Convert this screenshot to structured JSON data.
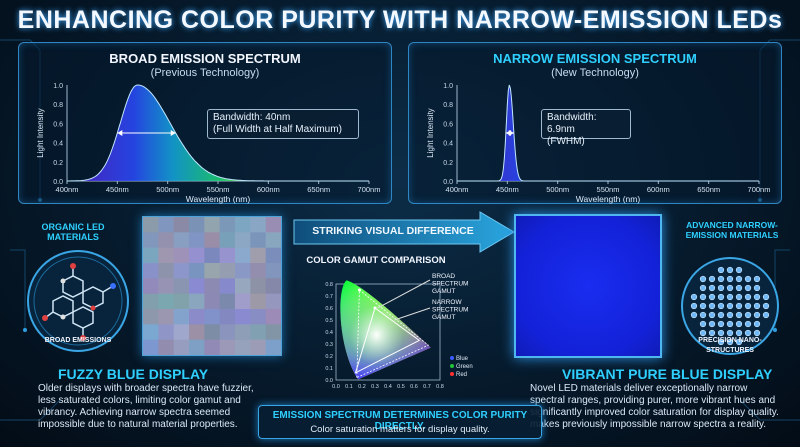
{
  "title": "ENHANCING COLOR PURITY WITH NARROW-EMISSION LEDs",
  "left_chart": {
    "title": "BROAD EMISSION SPECTRUM",
    "subtitle": "(Previous Technology)",
    "annotation_line1": "Bandwidth: 40nm",
    "annotation_line2": "(Full Width at Half Maximum)",
    "xlabel": "Wavelength (nm)",
    "ylabel": "Light Intensity"
  },
  "right_chart": {
    "title": "NARROW EMISSION SPECTRUM",
    "subtitle": "(New Technology)",
    "annotation_line1": "Bandwidth: 6.9nm",
    "annotation_line2": "(FWHM)",
    "xlabel": "Wavelength (nm)",
    "ylabel": "Light Intensity"
  },
  "chart_data": [
    {
      "type": "line",
      "title": "BROAD EMISSION SPECTRUM",
      "xlabel": "Wavelength (nm)",
      "ylabel": "Light Intensity",
      "x_ticks": [
        "400nm",
        "450nm",
        "500nm",
        "550nm",
        "600nm",
        "650nm",
        "700nm"
      ],
      "y_ticks": [
        "0.0",
        "0.2",
        "0.4",
        "0.6",
        "0.8",
        "1.0"
      ],
      "xlim": [
        400,
        700
      ],
      "ylim": [
        0,
        1
      ],
      "peak_nm": 470,
      "fwhm_nm": 40
    },
    {
      "type": "line",
      "title": "NARROW EMISSION SPECTRUM",
      "xlabel": "Wavelength (nm)",
      "ylabel": "Light Intensity",
      "x_ticks": [
        "400nm",
        "450nm",
        "500nm",
        "550nm",
        "600nm",
        "650nm",
        "700nm"
      ],
      "y_ticks": [
        "0.0",
        "0.2",
        "0.4",
        "0.6",
        "0.8",
        "1.0"
      ],
      "xlim": [
        400,
        700
      ],
      "ylim": [
        0,
        1
      ],
      "peak_nm": 452,
      "fwhm_nm": 6.9
    }
  ],
  "organic": {
    "label": "ORGANIC LED MATERIALS",
    "bottom": "BROAD EMISSIONS"
  },
  "advanced": {
    "label": "ADVANCED NARROW-EMISSION MATERIALS",
    "bottom": "PRECISION NANO-STRUCTURES"
  },
  "arrow_label": "STRIKING VISUAL DIFFERENCE",
  "gamut": {
    "title": "COLOR GAMUT COMPARISON",
    "broad_label": "BROAD SPECTRUM GAMUT",
    "narrow_label": "NARROW SPECTRUM GAMUT",
    "legend": [
      "Blue",
      "Green",
      "Red"
    ],
    "x_ticks": [
      "0.0",
      "0.1",
      "0.2",
      "0.3",
      "0.4",
      "0.5",
      "0.6",
      "0.7",
      "0.8"
    ],
    "y_ticks": [
      "0.0",
      "0.1",
      "0.2",
      "0.3",
      "0.4",
      "0.5",
      "0.6",
      "0.7",
      "0.8"
    ],
    "colors": {
      "blue": "#3a5bff",
      "green": "#22c43a",
      "red": "#ff3030"
    }
  },
  "left_bottom": {
    "title": "FUZZY BLUE DISPLAY",
    "text": [
      "Older displays with broader spectra have fuzzier,",
      "less saturated colors, limiting color gamut and",
      "vibrancy. Achieving narrow spectra seemed",
      "impossible due to natural material properties."
    ]
  },
  "right_bottom": {
    "title": "VIBRANT PURE BLUE DISPLAY",
    "text": [
      "Novel LED materials deliver exceptionally narrow",
      "spectral ranges, providing purer, more vibrant hues and",
      "significantly improved color saturation for display quality.",
      "makes previously impossible narrow spectra a reality."
    ]
  },
  "footer": {
    "title": "EMISSION SPECTRUM DETERMINES COLOR PURITY DIRECTLY.",
    "subtitle": "Color saturation matters for display quality."
  }
}
